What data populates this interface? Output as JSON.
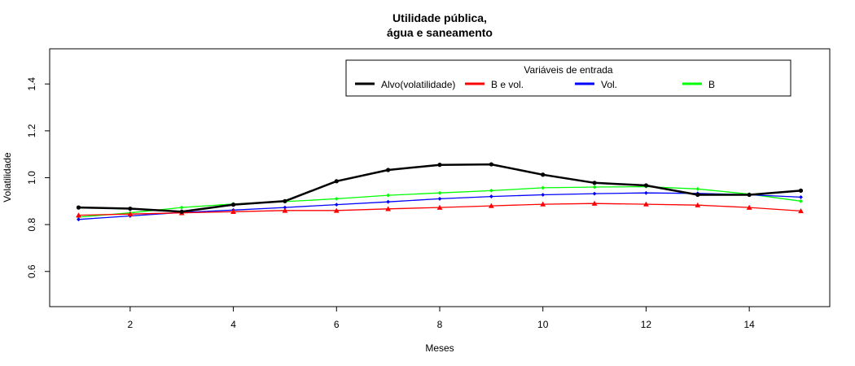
{
  "chart_data": {
    "type": "line",
    "title_line1": "Utilidade pública,",
    "title_line2": "água e saneamento",
    "xlabel": "Meses",
    "ylabel": "Volatilidade",
    "xlim": [
      0.44,
      15.56
    ],
    "ylim": [
      0.45,
      1.55
    ],
    "x_ticks": [
      2,
      4,
      6,
      8,
      10,
      12,
      14
    ],
    "y_ticks": [
      0.6,
      0.8,
      1.0,
      1.2,
      1.4
    ],
    "x_tick_labels": [
      "2",
      "4",
      "6",
      "8",
      "10",
      "12",
      "14"
    ],
    "y_tick_labels": [
      "0.6",
      "0.8",
      "1.0",
      "1.2",
      "1.4"
    ],
    "legend_title": "Variáveis de entrada",
    "legend_position": "top-right",
    "grid": false,
    "x": [
      1,
      2,
      3,
      4,
      5,
      6,
      7,
      8,
      9,
      10,
      11,
      12,
      13,
      14,
      15
    ],
    "series": [
      {
        "name": "Alvo(volatilidade)",
        "color": "#000000",
        "marker": "circle",
        "values": [
          0.873,
          0.868,
          0.855,
          0.885,
          0.9,
          0.985,
          1.033,
          1.055,
          1.057,
          1.013,
          0.978,
          0.967,
          0.927,
          0.927,
          0.945
        ]
      },
      {
        "name": "B e vol.",
        "color": "#ff0000",
        "marker": "triangle",
        "values": [
          0.84,
          0.845,
          0.85,
          0.855,
          0.86,
          0.86,
          0.867,
          0.873,
          0.88,
          0.887,
          0.89,
          0.887,
          0.883,
          0.873,
          0.858
        ]
      },
      {
        "name": "Vol.",
        "color": "#0000ff",
        "marker": "diamond",
        "values": [
          0.822,
          0.837,
          0.852,
          0.862,
          0.873,
          0.885,
          0.897,
          0.91,
          0.92,
          0.927,
          0.932,
          0.935,
          0.933,
          0.927,
          0.917
        ]
      },
      {
        "name": "B",
        "color": "#00ff00",
        "marker": "diamond",
        "values": [
          0.832,
          0.85,
          0.873,
          0.888,
          0.898,
          0.91,
          0.925,
          0.935,
          0.945,
          0.957,
          0.96,
          0.962,
          0.952,
          0.93,
          0.9
        ]
      }
    ]
  }
}
